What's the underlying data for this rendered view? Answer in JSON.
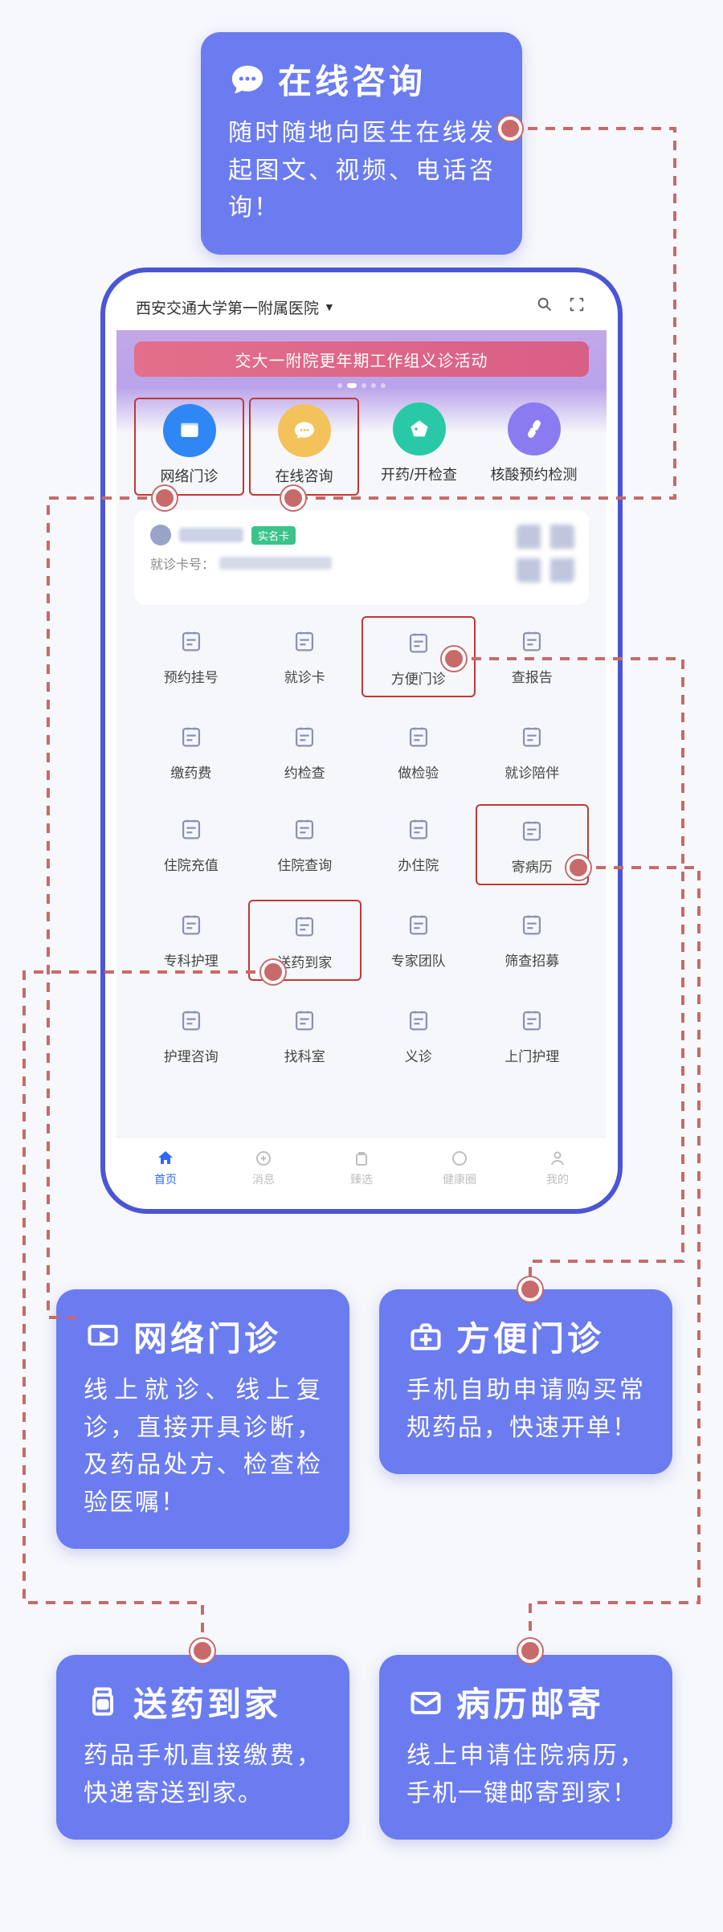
{
  "colors": {
    "callout_bg": "#6b7cf0",
    "callout_text": "#ffffff",
    "connector": "#c86a6a",
    "phone_border": "#4a56d6",
    "tab_active": "#2f6af5"
  },
  "callouts": {
    "consult": {
      "title": "在线咨询",
      "desc": "随时随地向医生在线发起图文、视频、电话咨询！"
    },
    "netclinic": {
      "title": "网络门诊",
      "desc": "线上就诊、线上复诊，直接开具诊断，及药品处方、检查检验医嘱！"
    },
    "easyclinic": {
      "title": "方便门诊",
      "desc": "手机自助申请购买常规药品，快速开单！"
    },
    "delivery": {
      "title": "送药到家",
      "desc": "药品手机直接缴费，快递寄送到家。"
    },
    "mailrecord": {
      "title": "病历邮寄",
      "desc": "线上申请住院病历，手机一键邮寄到家！"
    }
  },
  "phone": {
    "header_title": "西安交通大学第一附属医院",
    "promo_text": "交大一附院更年期工作组义诊活动",
    "quick": [
      {
        "label": "网络门诊",
        "color": "#2f86f5",
        "highlight": true
      },
      {
        "label": "在线咨询",
        "color": "#f3c25b",
        "highlight": true
      },
      {
        "label": "开药/开检查",
        "color": "#29c9a8",
        "highlight": false
      },
      {
        "label": "核酸预约检测",
        "color": "#8a7cf0",
        "highlight": false
      }
    ],
    "card": {
      "badge": "实名卡",
      "sub_label": "就诊卡号："
    },
    "grid": [
      {
        "label": "预约挂号",
        "hl": false
      },
      {
        "label": "就诊卡",
        "hl": false
      },
      {
        "label": "方便门诊",
        "hl": true
      },
      {
        "label": "查报告",
        "hl": false
      },
      {
        "label": "缴药费",
        "hl": false
      },
      {
        "label": "约检查",
        "hl": false
      },
      {
        "label": "做检验",
        "hl": false
      },
      {
        "label": "就诊陪伴",
        "hl": false
      },
      {
        "label": "住院充值",
        "hl": false
      },
      {
        "label": "住院查询",
        "hl": false
      },
      {
        "label": "办住院",
        "hl": false
      },
      {
        "label": "寄病历",
        "hl": true
      },
      {
        "label": "专科护理",
        "hl": false
      },
      {
        "label": "送药到家",
        "hl": true
      },
      {
        "label": "专家团队",
        "hl": false
      },
      {
        "label": "筛查招募",
        "hl": false
      },
      {
        "label": "护理咨询",
        "hl": false
      },
      {
        "label": "找科室",
        "hl": false
      },
      {
        "label": "义诊",
        "hl": false
      },
      {
        "label": "上门护理",
        "hl": false
      }
    ],
    "tabs": [
      {
        "label": "首页",
        "active": true
      },
      {
        "label": "消息",
        "active": false
      },
      {
        "label": "臻选",
        "active": false
      },
      {
        "label": "健康圈",
        "active": false
      },
      {
        "label": "我的",
        "active": false
      }
    ]
  }
}
